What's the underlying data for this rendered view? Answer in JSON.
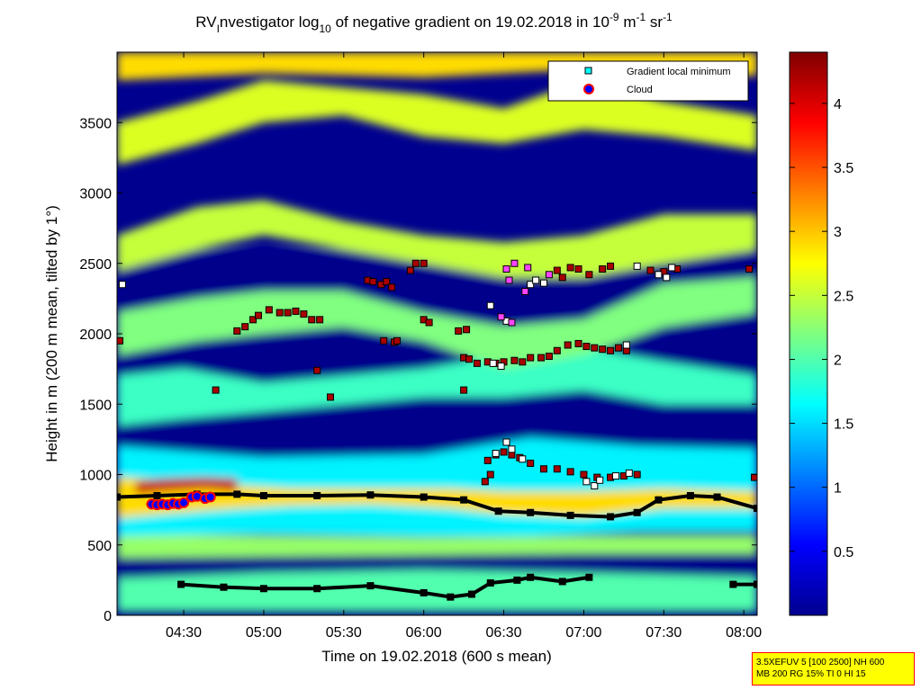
{
  "chart_data": {
    "type": "heatmap",
    "title": {
      "prefix": "RV",
      "prefix_sub": "I",
      "part1": "nvestigator log",
      "log_base": "10",
      "part2": " of negative gradient on 19.02.2018 in 10",
      "exp1": "-9",
      "unit1": " m",
      "exp2": "-1",
      "unit2": " sr",
      "exp3": "-1"
    },
    "xlabel": "Time on 19.02.2018 (600 s mean)",
    "ylabel": "Height in m (200 m mean, tilted by 1°)",
    "x_domain_minutes": [
      245,
      485
    ],
    "y_range": [
      0,
      4000
    ],
    "x_ticks": [
      {
        "label": "04:30",
        "minutes": 270
      },
      {
        "label": "05:00",
        "minutes": 300
      },
      {
        "label": "05:30",
        "minutes": 330
      },
      {
        "label": "06:00",
        "minutes": 360
      },
      {
        "label": "06:30",
        "minutes": 390
      },
      {
        "label": "07:00",
        "minutes": 420
      },
      {
        "label": "07:30",
        "minutes": 450
      },
      {
        "label": "08:00",
        "minutes": 480
      }
    ],
    "y_ticks": [
      {
        "label": "0",
        "value": 0
      },
      {
        "label": "500",
        "value": 500
      },
      {
        "label": "1000",
        "value": 1000
      },
      {
        "label": "1500",
        "value": 1500
      },
      {
        "label": "2000",
        "value": 2000
      },
      {
        "label": "2500",
        "value": 2500
      },
      {
        "label": "3000",
        "value": 3000
      },
      {
        "label": "3500",
        "value": 3500
      }
    ],
    "colorbar": {
      "range": [
        0,
        4.4
      ],
      "ticks": [
        {
          "label": "0.5",
          "value": 0.5
        },
        {
          "label": "1",
          "value": 1
        },
        {
          "label": "1.5",
          "value": 1.5
        },
        {
          "label": "2",
          "value": 2
        },
        {
          "label": "2.5",
          "value": 2.5
        },
        {
          "label": "3",
          "value": 3
        },
        {
          "label": "3.5",
          "value": 3.5
        },
        {
          "label": "4",
          "value": 4
        }
      ]
    },
    "legend": {
      "position": "top-right",
      "entries": [
        {
          "label": "Gradient local minimum",
          "marker": "square",
          "color": "#00ffff"
        },
        {
          "label": "Cloud",
          "marker": "circle",
          "color": "#ff0000"
        }
      ]
    },
    "layers": [
      {
        "kind": "band",
        "value": 0.05,
        "points": [
          [
            245,
            2600,
            0
          ],
          [
            485,
            2600,
            0
          ]
        ]
      },
      {
        "kind": "band",
        "value": 2.0,
        "points": [
          [
            245,
            40,
            260
          ],
          [
            300,
            40,
            300
          ],
          [
            360,
            40,
            320
          ],
          [
            420,
            40,
            300
          ],
          [
            485,
            40,
            270
          ]
        ]
      },
      {
        "kind": "band",
        "value": 2.3,
        "points": [
          [
            245,
            410,
            580
          ],
          [
            300,
            420,
            560
          ],
          [
            360,
            430,
            550
          ],
          [
            420,
            440,
            560
          ],
          [
            485,
            440,
            560
          ]
        ]
      },
      {
        "kind": "band",
        "value": 1.6,
        "points": [
          [
            245,
            560,
            1200
          ],
          [
            300,
            580,
            1120
          ],
          [
            360,
            560,
            1140
          ],
          [
            400,
            560,
            1260
          ],
          [
            440,
            600,
            1200
          ],
          [
            485,
            600,
            1180
          ]
        ]
      },
      {
        "kind": "band",
        "value": 2.9,
        "points": [
          [
            245,
            690,
            980
          ],
          [
            262,
            720,
            960
          ],
          [
            275,
            740,
            940
          ],
          [
            290,
            760,
            920
          ],
          [
            310,
            780,
            900
          ],
          [
            340,
            790,
            900
          ],
          [
            370,
            760,
            900
          ],
          [
            390,
            720,
            880
          ],
          [
            420,
            700,
            880
          ],
          [
            450,
            760,
            900
          ],
          [
            485,
            760,
            880
          ]
        ]
      },
      {
        "kind": "band",
        "value": 4.1,
        "points": [
          [
            252,
            860,
            950
          ],
          [
            262,
            880,
            970
          ],
          [
            278,
            900,
            980
          ],
          [
            290,
            880,
            970
          ]
        ]
      },
      {
        "kind": "band",
        "value": 1.9,
        "points": [
          [
            245,
            1350,
            1700
          ],
          [
            270,
            1400,
            1750
          ],
          [
            300,
            1450,
            1650
          ],
          [
            330,
            1500,
            1700
          ],
          [
            360,
            1550,
            1750
          ],
          [
            390,
            1550,
            1850
          ],
          [
            420,
            1600,
            1900
          ],
          [
            450,
            1500,
            1800
          ],
          [
            485,
            1500,
            1700
          ]
        ]
      },
      {
        "kind": "band",
        "value": 2.2,
        "points": [
          [
            245,
            1850,
            2150
          ],
          [
            275,
            1950,
            2250
          ],
          [
            300,
            2000,
            2300
          ],
          [
            330,
            2050,
            2300
          ],
          [
            360,
            1950,
            2150
          ],
          [
            390,
            1750,
            2050
          ],
          [
            420,
            1850,
            2100
          ],
          [
            450,
            2050,
            2350
          ],
          [
            485,
            2150,
            2400
          ]
        ]
      },
      {
        "kind": "band",
        "value": 2.5,
        "points": [
          [
            245,
            2450,
            2700
          ],
          [
            275,
            2600,
            2900
          ],
          [
            300,
            2700,
            2950
          ],
          [
            330,
            2600,
            2800
          ],
          [
            360,
            2500,
            2700
          ],
          [
            390,
            2400,
            2650
          ],
          [
            420,
            2400,
            2700
          ],
          [
            450,
            2500,
            2850
          ],
          [
            485,
            2600,
            2850
          ]
        ]
      },
      {
        "kind": "band",
        "value": 2.6,
        "points": [
          [
            245,
            3200,
            3500
          ],
          [
            275,
            3350,
            3650
          ],
          [
            300,
            3500,
            3800
          ],
          [
            330,
            3550,
            3750
          ],
          [
            360,
            3400,
            3700
          ],
          [
            390,
            3350,
            3600
          ],
          [
            420,
            3450,
            3800
          ],
          [
            450,
            3400,
            3650
          ],
          [
            485,
            3300,
            3550
          ]
        ]
      },
      {
        "kind": "band",
        "value": 2.9,
        "points": [
          [
            245,
            3800,
            4000
          ],
          [
            300,
            3850,
            4000
          ],
          [
            360,
            3820,
            4000
          ],
          [
            420,
            3880,
            4000
          ],
          [
            485,
            3830,
            4000
          ]
        ]
      }
    ],
    "series": [
      {
        "name": "Gradient local minimum",
        "marker": "square",
        "color": "#000000",
        "line": true,
        "points": [
          [
            245,
            840
          ],
          [
            260,
            850
          ],
          [
            275,
            860
          ],
          [
            290,
            860
          ],
          [
            300,
            850
          ],
          [
            320,
            850
          ],
          [
            340,
            855
          ],
          [
            360,
            840
          ],
          [
            375,
            820
          ],
          [
            388,
            740
          ],
          [
            400,
            730
          ],
          [
            415,
            710
          ],
          [
            430,
            700
          ],
          [
            440,
            730
          ],
          [
            448,
            820
          ],
          [
            460,
            850
          ],
          [
            470,
            840
          ],
          [
            485,
            760
          ]
        ]
      },
      {
        "name": "Gradient local minimum",
        "marker": "square",
        "color": "#000000",
        "line": true,
        "points": [
          [
            269,
            220
          ],
          [
            285,
            200
          ],
          [
            300,
            190
          ],
          [
            320,
            190
          ],
          [
            340,
            210
          ],
          [
            360,
            160
          ],
          [
            370,
            130
          ],
          [
            378,
            150
          ],
          [
            385,
            230
          ],
          [
            395,
            250
          ],
          [
            400,
            270
          ],
          [
            412,
            240
          ],
          [
            422,
            270
          ]
        ]
      },
      {
        "name": "Gradient local minimum",
        "marker": "square",
        "color": "#000000",
        "line": true,
        "points": [
          [
            476,
            220
          ],
          [
            485,
            220
          ]
        ]
      },
      {
        "name": "Gradient local minimum",
        "marker": "square",
        "color": "#aa0000",
        "line": false,
        "points": [
          [
            246,
            1950
          ],
          [
            290,
            2020
          ],
          [
            293,
            2050
          ],
          [
            296,
            2100
          ],
          [
            298,
            2130
          ],
          [
            302,
            2170
          ],
          [
            306,
            2150
          ],
          [
            309,
            2150
          ],
          [
            312,
            2160
          ],
          [
            315,
            2140
          ],
          [
            318,
            2100
          ],
          [
            321,
            2100
          ],
          [
            339,
            2380
          ],
          [
            341,
            2370
          ],
          [
            344,
            2350
          ],
          [
            346,
            2370
          ],
          [
            348,
            2330
          ],
          [
            355,
            2450
          ],
          [
            357,
            2500
          ],
          [
            360,
            2500
          ],
          [
            345,
            1950
          ],
          [
            349,
            1940
          ],
          [
            350,
            1950
          ],
          [
            360,
            2100
          ],
          [
            362,
            2080
          ],
          [
            373,
            2020
          ],
          [
            376,
            2030
          ],
          [
            375,
            1830
          ],
          [
            377,
            1820
          ],
          [
            380,
            1790
          ],
          [
            384,
            1800
          ],
          [
            387,
            1790
          ],
          [
            390,
            1800
          ],
          [
            394,
            1810
          ],
          [
            397,
            1800
          ],
          [
            400,
            1830
          ],
          [
            404,
            1830
          ],
          [
            407,
            1840
          ],
          [
            410,
            1880
          ],
          [
            414,
            1920
          ],
          [
            418,
            1930
          ],
          [
            421,
            1910
          ],
          [
            424,
            1900
          ],
          [
            427,
            1890
          ],
          [
            430,
            1880
          ],
          [
            433,
            1900
          ],
          [
            436,
            1880
          ],
          [
            384,
            1100
          ],
          [
            387,
            1140
          ],
          [
            390,
            1160
          ],
          [
            393,
            1140
          ],
          [
            396,
            1120
          ],
          [
            400,
            1080
          ],
          [
            405,
            1040
          ],
          [
            410,
            1040
          ],
          [
            415,
            1020
          ],
          [
            420,
            1000
          ],
          [
            425,
            980
          ],
          [
            430,
            980
          ],
          [
            435,
            990
          ],
          [
            440,
            1000
          ],
          [
            383,
            950
          ],
          [
            385,
            1000
          ],
          [
            445,
            2450
          ],
          [
            450,
            2440
          ],
          [
            455,
            2460
          ],
          [
            482,
            2460
          ],
          [
            484,
            980
          ],
          [
            282,
            1600
          ],
          [
            320,
            1740
          ],
          [
            325,
            1550
          ],
          [
            375,
            1600
          ],
          [
            410,
            2450
          ],
          [
            412,
            2400
          ],
          [
            415,
            2470
          ],
          [
            418,
            2460
          ],
          [
            422,
            2420
          ],
          [
            427,
            2460
          ],
          [
            430,
            2480
          ]
        ]
      },
      {
        "name": "Gradient local minimum",
        "marker": "square",
        "color": "#ffffff",
        "line": false,
        "points": [
          [
            247,
            2350
          ],
          [
            387,
            1150
          ],
          [
            391,
            1230
          ],
          [
            393,
            1180
          ],
          [
            397,
            1110
          ],
          [
            400,
            2350
          ],
          [
            402,
            2380
          ],
          [
            405,
            2360
          ],
          [
            421,
            950
          ],
          [
            424,
            920
          ],
          [
            426,
            960
          ],
          [
            432,
            990
          ],
          [
            437,
            1010
          ],
          [
            448,
            2420
          ],
          [
            451,
            2400
          ],
          [
            453,
            2470
          ],
          [
            386,
            1790
          ],
          [
            389,
            1770
          ],
          [
            385,
            2200
          ],
          [
            391,
            2090
          ],
          [
            436,
            1920
          ],
          [
            440,
            2480
          ]
        ]
      },
      {
        "name": "Gradient local minimum",
        "marker": "square",
        "color": "#ff44ff",
        "line": false,
        "points": [
          [
            391,
            2460
          ],
          [
            394,
            2500
          ],
          [
            392,
            2380
          ],
          [
            398,
            2300
          ],
          [
            399,
            2470
          ],
          [
            407,
            2420
          ],
          [
            389,
            2120
          ],
          [
            393,
            2080
          ]
        ]
      },
      {
        "name": "Cloud",
        "marker": "circle",
        "color": "#ff0000",
        "line": false,
        "points": [
          [
            258,
            790
          ],
          [
            260,
            785
          ],
          [
            262,
            790
          ],
          [
            264,
            785
          ],
          [
            266,
            795
          ],
          [
            268,
            790
          ],
          [
            270,
            800
          ],
          [
            273,
            840
          ],
          [
            275,
            845
          ],
          [
            278,
            830
          ],
          [
            280,
            840
          ]
        ]
      }
    ]
  },
  "info_box": {
    "lines": [
      "3.5XEFUV 5 [100 2500] NH 600",
      "MB 200 RG 15% TI 0 HI 15"
    ]
  }
}
